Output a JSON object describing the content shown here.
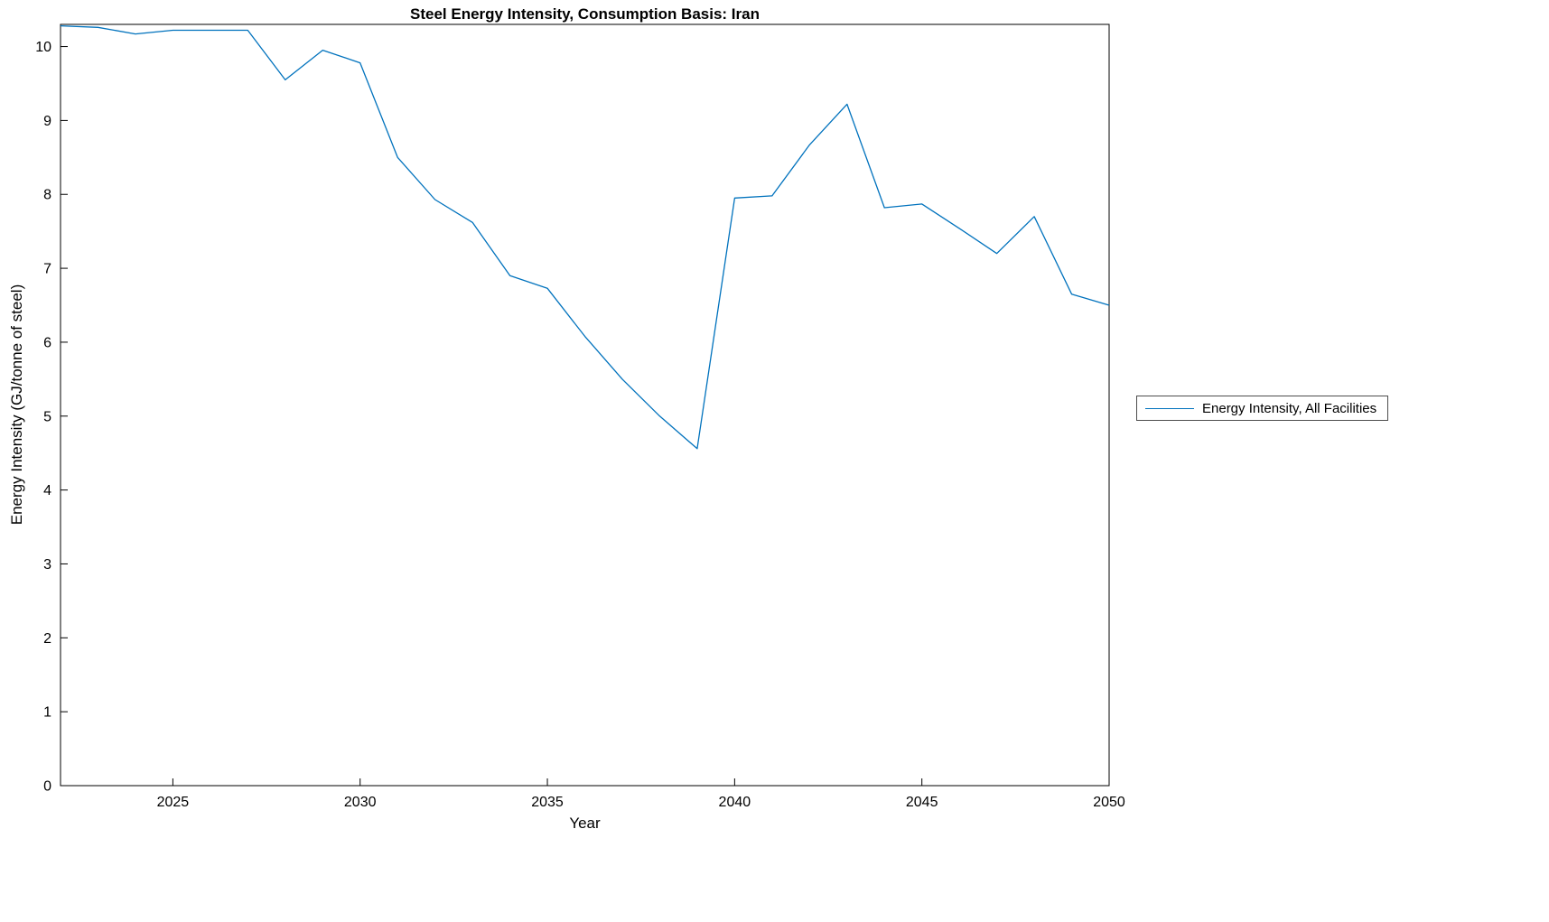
{
  "chart_data": {
    "type": "line",
    "title": "Steel Energy Intensity, Consumption Basis: Iran",
    "xlabel": "Year",
    "ylabel": "Energy Intensity (GJ/tonne of steel)",
    "x": [
      2022,
      2023,
      2024,
      2025,
      2026,
      2027,
      2028,
      2029,
      2030,
      2031,
      2032,
      2033,
      2034,
      2035,
      2036,
      2037,
      2038,
      2039,
      2040,
      2041,
      2042,
      2043,
      2044,
      2045,
      2046,
      2047,
      2048,
      2049,
      2050
    ],
    "series": [
      {
        "name": "Energy Intensity, All Facilities",
        "values": [
          10.28,
          10.26,
          10.17,
          10.22,
          10.22,
          10.22,
          9.55,
          9.95,
          9.78,
          8.5,
          7.93,
          7.62,
          6.9,
          6.73,
          6.08,
          5.5,
          5.0,
          4.56,
          7.95,
          7.98,
          8.67,
          9.22,
          7.82,
          7.87,
          7.54,
          7.2,
          7.7,
          6.65,
          6.5
        ]
      }
    ],
    "xlim": [
      2022,
      2050
    ],
    "ylim": [
      0,
      10.3
    ],
    "xticks": [
      2025,
      2030,
      2035,
      2040,
      2045,
      2050
    ],
    "yticks": [
      0,
      1,
      2,
      3,
      4,
      5,
      6,
      7,
      8,
      9,
      10
    ],
    "line_color": "#0072BD",
    "axis_color": "#000000",
    "grid": false,
    "legend_position": "right-outside"
  }
}
